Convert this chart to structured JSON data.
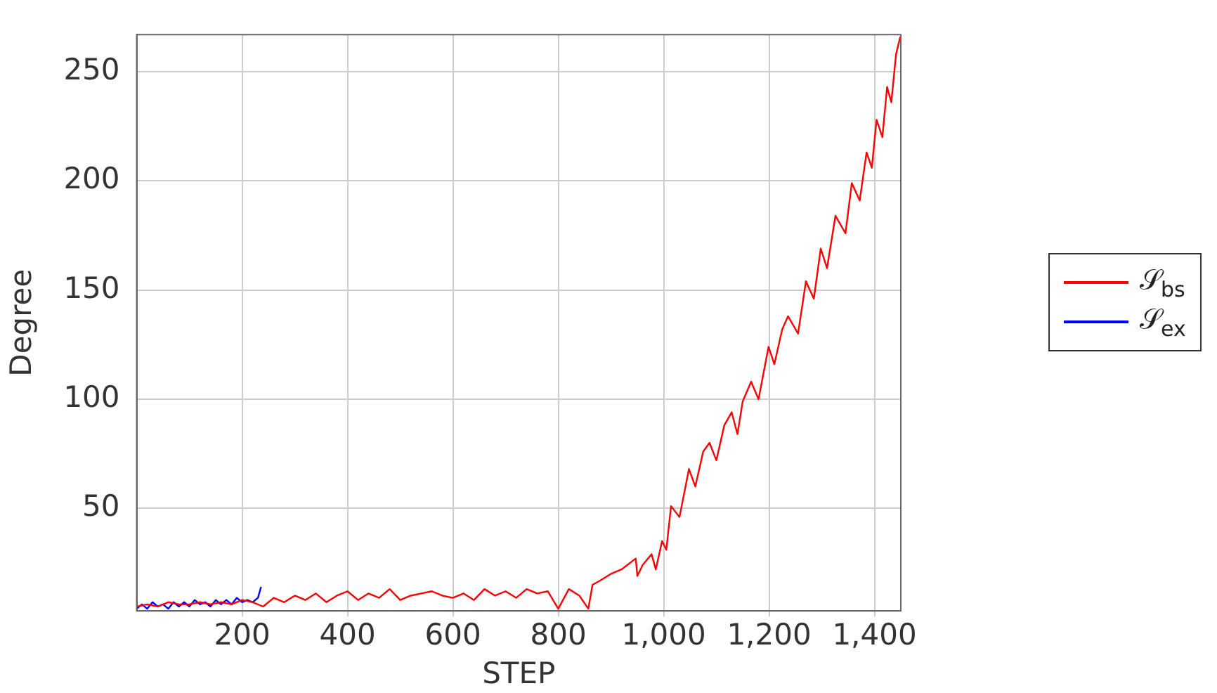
{
  "chart_data": {
    "type": "line",
    "xlabel": "STEP",
    "ylabel": "Degree",
    "xlim": [
      0,
      1450
    ],
    "ylim": [
      3,
      267
    ],
    "xticks": [
      200,
      400,
      600,
      800,
      {
        "value": 1000,
        "label": "1,000"
      },
      {
        "value": 1200,
        "label": "1,200"
      },
      {
        "value": 1400,
        "label": "1,400"
      }
    ],
    "yticks": [
      50,
      100,
      150,
      200,
      250
    ],
    "grid": true,
    "legend": "right",
    "marker": "none",
    "line_style": "solid",
    "series": [
      {
        "name": "𝒮$_{bs}$",
        "color": "#ff0000",
        "x": [
          0,
          20,
          40,
          60,
          80,
          100,
          120,
          140,
          160,
          180,
          200,
          220,
          240,
          260,
          280,
          300,
          320,
          340,
          360,
          380,
          400,
          420,
          440,
          460,
          480,
          500,
          520,
          540,
          560,
          580,
          600,
          620,
          640,
          660,
          680,
          700,
          720,
          740,
          760,
          780,
          800,
          820,
          840,
          857,
          865,
          880,
          900,
          920,
          947,
          950,
          960,
          977,
          985,
          997,
          1005,
          1014,
          1030,
          1048,
          1060,
          1075,
          1087,
          1100,
          1115,
          1129,
          1140,
          1150,
          1166,
          1180,
          1199,
          1210,
          1225,
          1236,
          1255,
          1270,
          1285,
          1298,
          1310,
          1326,
          1345,
          1357,
          1372,
          1385,
          1395,
          1404,
          1415,
          1424,
          1432,
          1441,
          1449
        ],
        "values": [
          5,
          6,
          5,
          7,
          6,
          6,
          7,
          6,
          7,
          6,
          8,
          7,
          5,
          9,
          7,
          10,
          8,
          11,
          7,
          10,
          12,
          8,
          11,
          9,
          13,
          8,
          10,
          11,
          12,
          10,
          9,
          11,
          8,
          13,
          10,
          12,
          9,
          13,
          11,
          12,
          4,
          13,
          10,
          4,
          15,
          17,
          20,
          22,
          27,
          19,
          24,
          29,
          22,
          35,
          31,
          51,
          46,
          68,
          60,
          76,
          80,
          72,
          88,
          94,
          84,
          99,
          108,
          100,
          124,
          116,
          132,
          138,
          130,
          154,
          146,
          169,
          160,
          184,
          176,
          199,
          191,
          213,
          206,
          228,
          220,
          243,
          236,
          258,
          266
        ]
      },
      {
        "name": "𝒮$_{ex}$",
        "color": "#0000ff",
        "x": [
          0,
          10,
          20,
          30,
          40,
          50,
          60,
          70,
          80,
          90,
          100,
          110,
          120,
          130,
          140,
          150,
          160,
          170,
          180,
          190,
          200,
          210,
          220,
          230,
          236
        ],
        "values": [
          4,
          6,
          4,
          7,
          5,
          6,
          4,
          7,
          5,
          7,
          5,
          8,
          6,
          7,
          5,
          8,
          6,
          8,
          6,
          9,
          7,
          8,
          7,
          9,
          14
        ]
      }
    ]
  }
}
